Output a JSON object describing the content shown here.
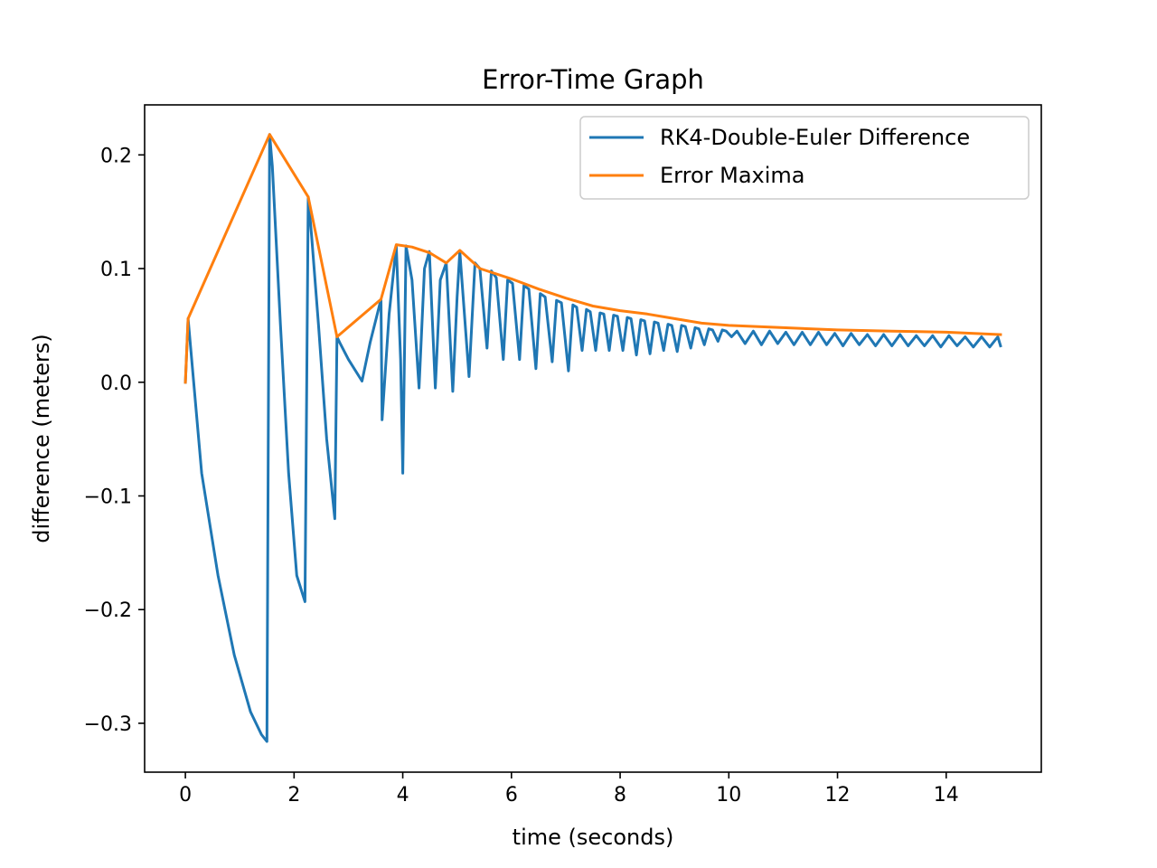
{
  "chart_data": {
    "type": "line",
    "title": "Error-Time Graph",
    "xlabel": "time (seconds)",
    "ylabel": "difference (meters)",
    "xlim": [
      -0.75,
      15.75
    ],
    "ylim": [
      -0.343,
      0.244
    ],
    "xticks": [
      0,
      2,
      4,
      6,
      8,
      10,
      12,
      14
    ],
    "xtick_labels": [
      "0",
      "2",
      "4",
      "6",
      "8",
      "10",
      "12",
      "14"
    ],
    "yticks": [
      -0.3,
      -0.2,
      -0.1,
      0.0,
      0.1,
      0.2
    ],
    "ytick_labels": [
      "−0.3",
      "−0.2",
      "−0.1",
      "0.0",
      "0.1",
      "0.2"
    ],
    "grid": false,
    "legend_position": "top-right",
    "series": [
      {
        "name": "RK4-Double-Euler Difference",
        "color": "#1f77b4",
        "x": [
          0.0,
          0.05,
          0.3,
          0.6,
          0.9,
          1.2,
          1.4,
          1.5,
          1.55,
          1.6,
          1.75,
          1.9,
          2.05,
          2.2,
          2.26,
          2.32,
          2.45,
          2.6,
          2.75,
          2.79,
          2.84,
          3.0,
          3.25,
          3.4,
          3.6,
          3.62,
          3.75,
          3.88,
          3.96,
          4.0,
          4.06,
          4.17,
          4.3,
          4.4,
          4.49,
          4.6,
          4.69,
          4.8,
          4.92,
          5.0,
          5.05,
          5.22,
          5.33,
          5.42,
          5.55,
          5.63,
          5.72,
          5.85,
          5.93,
          6.02,
          6.15,
          6.23,
          6.32,
          6.45,
          6.53,
          6.62,
          6.75,
          6.83,
          6.92,
          7.05,
          7.13,
          7.2,
          7.3,
          7.38,
          7.45,
          7.55,
          7.63,
          7.7,
          7.8,
          7.88,
          7.95,
          8.05,
          8.13,
          8.2,
          8.3,
          8.38,
          8.45,
          8.55,
          8.63,
          8.7,
          8.8,
          8.88,
          8.95,
          9.05,
          9.13,
          9.2,
          9.3,
          9.38,
          9.45,
          9.55,
          9.63,
          9.7,
          9.8,
          9.88,
          9.95,
          10.05,
          10.15,
          10.3,
          10.45,
          10.6,
          10.75,
          10.9,
          11.05,
          11.2,
          11.35,
          11.5,
          11.65,
          11.8,
          11.95,
          12.1,
          12.25,
          12.4,
          12.55,
          12.7,
          12.85,
          13.0,
          13.15,
          13.3,
          13.45,
          13.6,
          13.75,
          13.9,
          14.05,
          14.2,
          14.35,
          14.5,
          14.65,
          14.8,
          14.95,
          15.0
        ],
        "y": [
          0.0,
          0.056,
          -0.08,
          -0.17,
          -0.24,
          -0.29,
          -0.31,
          -0.316,
          0.218,
          0.19,
          0.05,
          -0.08,
          -0.17,
          -0.193,
          0.163,
          0.13,
          0.05,
          -0.05,
          -0.12,
          0.04,
          0.035,
          0.02,
          0.001,
          0.035,
          0.073,
          -0.033,
          0.06,
          0.12,
          0.02,
          -0.08,
          0.12,
          0.09,
          -0.005,
          0.1,
          0.115,
          -0.005,
          0.09,
          0.105,
          -0.008,
          0.075,
          0.115,
          0.005,
          0.105,
          0.1,
          0.03,
          0.098,
          0.092,
          0.02,
          0.09,
          0.087,
          0.02,
          0.085,
          0.082,
          0.012,
          0.078,
          0.075,
          0.018,
          0.072,
          0.07,
          0.01,
          0.068,
          0.066,
          0.028,
          0.064,
          0.062,
          0.028,
          0.061,
          0.06,
          0.028,
          0.059,
          0.058,
          0.028,
          0.057,
          0.056,
          0.024,
          0.055,
          0.054,
          0.025,
          0.053,
          0.052,
          0.028,
          0.051,
          0.05,
          0.027,
          0.05,
          0.049,
          0.03,
          0.048,
          0.047,
          0.033,
          0.047,
          0.046,
          0.036,
          0.046,
          0.045,
          0.04,
          0.045,
          0.034,
          0.045,
          0.033,
          0.045,
          0.034,
          0.044,
          0.033,
          0.044,
          0.033,
          0.044,
          0.033,
          0.043,
          0.032,
          0.043,
          0.033,
          0.042,
          0.032,
          0.042,
          0.032,
          0.042,
          0.032,
          0.041,
          0.032,
          0.041,
          0.031,
          0.041,
          0.032,
          0.04,
          0.031,
          0.04,
          0.031,
          0.04,
          0.032
        ]
      },
      {
        "name": "Error Maxima",
        "color": "#ff7f0e",
        "x": [
          0.0,
          0.05,
          1.55,
          2.26,
          2.79,
          3.6,
          3.88,
          4.17,
          4.49,
          4.8,
          5.05,
          5.42,
          6.0,
          6.5,
          7.0,
          7.5,
          8.0,
          8.5,
          9.0,
          9.5,
          10.0,
          11.0,
          12.0,
          13.0,
          14.0,
          15.0
        ],
        "y": [
          0.0,
          0.056,
          0.218,
          0.163,
          0.04,
          0.073,
          0.121,
          0.119,
          0.114,
          0.105,
          0.116,
          0.1,
          0.091,
          0.082,
          0.074,
          0.067,
          0.063,
          0.06,
          0.056,
          0.052,
          0.05,
          0.048,
          0.046,
          0.045,
          0.044,
          0.042
        ]
      }
    ]
  }
}
